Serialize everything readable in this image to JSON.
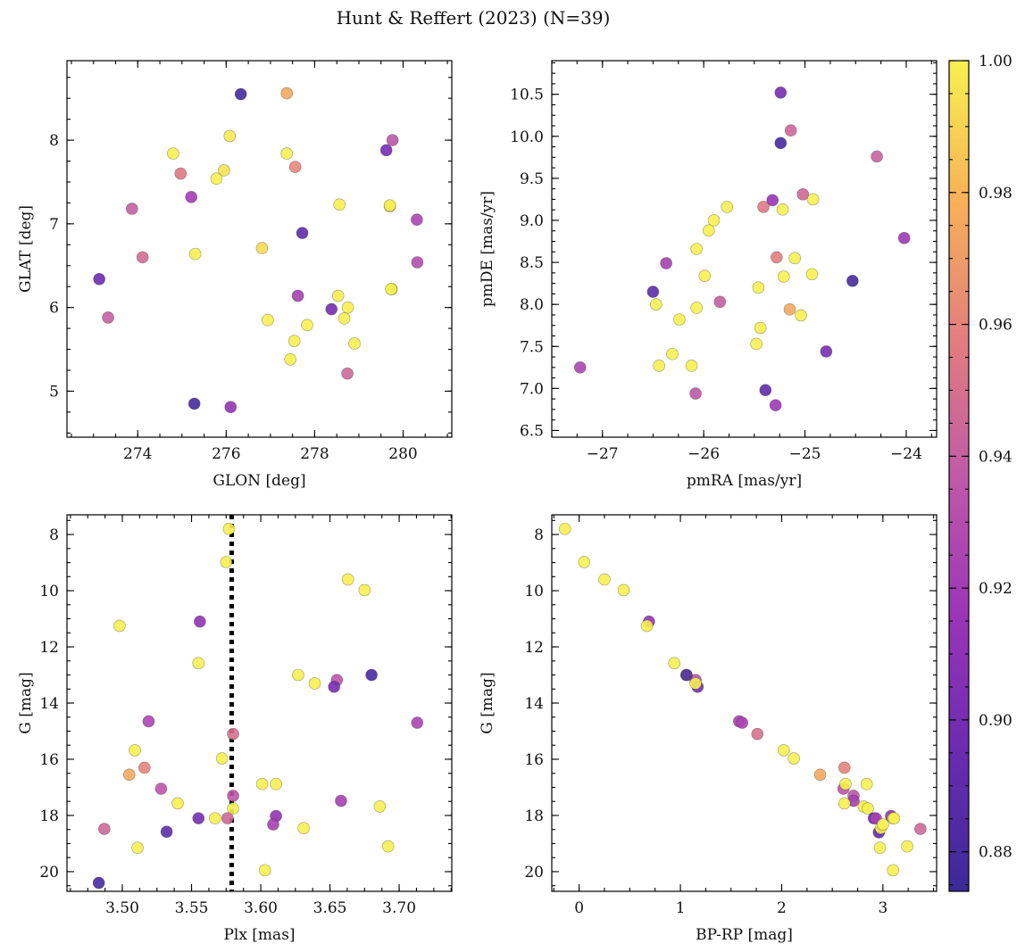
{
  "figure": {
    "title": "Hunt & Reffert (2023) (N=39)"
  },
  "colorbar": {
    "range": [
      0.874,
      1.0
    ],
    "tick_values": [
      0.88,
      0.9,
      0.92,
      0.94,
      0.96,
      0.98,
      1.0
    ],
    "tick_labels": [
      "0.88",
      "0.90",
      "0.92",
      "0.94",
      "0.96",
      "0.98",
      "1.00"
    ]
  },
  "colormap": {
    "name": "plasma",
    "stops": [
      "#3b2a98",
      "#6a2bb0",
      "#9b35b8",
      "#c05aa8",
      "#e37e7e",
      "#f8b257",
      "#f7f050"
    ]
  },
  "chart_data": [
    {
      "type": "scatter",
      "id": "glon-glat",
      "xlabel": "GLON [deg]",
      "ylabel": "GLAT [deg]",
      "xlim": [
        272.4,
        281.1
      ],
      "ylim": [
        4.45,
        8.95
      ],
      "invert_y": false,
      "xticks": [
        274,
        276,
        278,
        280
      ],
      "yticks": [
        5,
        6,
        7,
        8
      ],
      "x": [
        276.33,
        277.37,
        276.08,
        274.8,
        274.97,
        275.95,
        275.78,
        275.21,
        277.37,
        277.56,
        279.62,
        279.76,
        278.56,
        279.7,
        279.7,
        277.72,
        273.87,
        276.81,
        275.3,
        274.11,
        280.31,
        280.32,
        273.13,
        273.33,
        277.62,
        278.53,
        278.75,
        278.38,
        276.94,
        278.67,
        277.83,
        277.54,
        278.9,
        277.45,
        278.74,
        275.28,
        276.1,
        279.74,
        279.73
      ],
      "y": [
        8.55,
        8.56,
        8.05,
        7.84,
        7.6,
        7.64,
        7.54,
        7.32,
        7.84,
        7.68,
        7.88,
        8.0,
        7.23,
        7.21,
        7.22,
        6.89,
        7.18,
        6.71,
        6.64,
        6.6,
        7.05,
        6.54,
        6.34,
        5.88,
        6.14,
        6.14,
        6.0,
        5.98,
        5.85,
        5.87,
        5.79,
        5.6,
        5.57,
        5.38,
        5.21,
        4.85,
        4.81,
        6.22,
        6.22
      ],
      "c": [
        0.878,
        0.975,
        0.998,
        1.0,
        0.955,
        0.995,
        1.0,
        0.92,
        1.0,
        0.962,
        0.9,
        0.935,
        1.0,
        0.99,
        1.0,
        0.89,
        0.94,
        0.993,
        1.0,
        0.948,
        0.925,
        0.93,
        0.895,
        0.94,
        0.922,
        0.998,
        1.0,
        0.9,
        1.0,
        1.0,
        1.0,
        1.0,
        1.0,
        1.0,
        0.945,
        0.88,
        0.912,
        1.0,
        1.0
      ]
    },
    {
      "type": "scatter",
      "id": "pmra-pmde",
      "xlabel": "pmRA [mas/yr]",
      "ylabel": "pmDE [mas/yr]",
      "xlim": [
        -27.5,
        -23.7
      ],
      "ylim": [
        6.42,
        10.9
      ],
      "invert_y": false,
      "xticks": [
        -27,
        -26,
        -25,
        -24
      ],
      "xtick_labels": [
        "−27",
        "−26",
        "−25",
        "−24"
      ],
      "yticks": [
        6.5,
        7.0,
        7.5,
        8.0,
        8.5,
        9.0,
        9.5,
        10.0,
        10.5
      ],
      "ytick_labels": [
        "6.5",
        "7.0",
        "7.5",
        "8.0",
        "8.5",
        "9.0",
        "9.5",
        "10.0",
        "10.5"
      ],
      "x": [
        -25.24,
        -25.14,
        -25.24,
        -24.29,
        -25.02,
        -24.92,
        -25.32,
        -25.41,
        -25.22,
        -25.77,
        -25.9,
        -25.95,
        -24.02,
        -26.07,
        -25.1,
        -25.28,
        -26.37,
        -25.99,
        -24.93,
        -25.46,
        -24.53,
        -26.5,
        -25.04,
        -26.47,
        -25.15,
        -26.07,
        -25.84,
        -26.24,
        -25.44,
        -25.48,
        -26.31,
        -26.44,
        -24.79,
        -26.12,
        -27.22,
        -26.08,
        -25.39,
        -25.29,
        -25.21
      ],
      "y": [
        10.52,
        10.07,
        9.92,
        9.76,
        9.31,
        9.25,
        9.24,
        9.16,
        9.13,
        9.16,
        9.0,
        8.88,
        8.79,
        8.66,
        8.55,
        8.56,
        8.49,
        8.34,
        8.36,
        8.2,
        8.28,
        8.15,
        7.87,
        8.0,
        7.94,
        7.96,
        8.03,
        7.82,
        7.72,
        7.53,
        7.41,
        7.27,
        7.44,
        7.27,
        7.25,
        6.94,
        6.98,
        6.8,
        8.33
      ],
      "c": [
        0.9,
        0.945,
        0.878,
        0.942,
        0.945,
        1.0,
        0.915,
        0.955,
        1.0,
        1.0,
        1.0,
        1.0,
        0.918,
        1.0,
        1.0,
        0.958,
        0.922,
        1.0,
        1.0,
        1.0,
        0.88,
        0.89,
        1.0,
        1.0,
        0.975,
        1.0,
        0.94,
        1.0,
        1.0,
        1.0,
        1.0,
        1.0,
        0.9,
        1.0,
        0.925,
        0.935,
        0.89,
        0.918,
        1.0
      ]
    },
    {
      "type": "scatter",
      "id": "plx-g",
      "xlabel": "Plx [mas]",
      "ylabel": "G [mag]",
      "xlim": [
        3.46,
        3.738
      ],
      "ylim": [
        7.3,
        20.7
      ],
      "invert_y": true,
      "xticks": [
        3.5,
        3.55,
        3.6,
        3.65,
        3.7
      ],
      "xtick_labels": [
        "3.50",
        "3.55",
        "3.60",
        "3.65",
        "3.70"
      ],
      "yticks": [
        8,
        10,
        12,
        14,
        16,
        18,
        20
      ],
      "vline": {
        "x": 3.579,
        "style": "dotted"
      },
      "x": [
        3.577,
        3.575,
        3.663,
        3.675,
        3.498,
        3.556,
        3.555,
        3.627,
        3.639,
        3.655,
        3.653,
        3.68,
        3.519,
        3.713,
        3.58,
        3.509,
        3.572,
        3.516,
        3.505,
        3.528,
        3.601,
        3.611,
        3.54,
        3.686,
        3.58,
        3.658,
        3.567,
        3.576,
        3.611,
        3.555,
        3.609,
        3.487,
        3.532,
        3.631,
        3.511,
        3.692,
        3.603,
        3.483,
        3.58
      ],
      "y": [
        7.8,
        8.98,
        9.6,
        9.98,
        11.25,
        11.1,
        12.58,
        13.0,
        13.3,
        13.18,
        13.42,
        13.0,
        14.65,
        14.7,
        15.1,
        15.68,
        15.97,
        16.3,
        16.55,
        17.05,
        16.88,
        16.88,
        17.57,
        17.68,
        17.3,
        17.48,
        18.1,
        18.1,
        18.02,
        18.1,
        18.32,
        18.48,
        18.58,
        18.45,
        19.15,
        19.1,
        19.95,
        20.4,
        17.75
      ],
      "c": [
        1.0,
        1.0,
        1.0,
        1.0,
        1.0,
        0.912,
        1.0,
        1.0,
        1.0,
        0.935,
        0.9,
        0.88,
        0.925,
        0.925,
        0.95,
        1.0,
        1.0,
        0.96,
        0.975,
        0.935,
        1.0,
        1.0,
        1.0,
        1.0,
        0.935,
        0.922,
        1.0,
        0.945,
        0.912,
        0.9,
        0.922,
        0.945,
        0.89,
        1.0,
        1.0,
        1.0,
        1.0,
        0.88,
        1.0
      ]
    },
    {
      "type": "scatter",
      "id": "bprp-g",
      "xlabel": "BP-RP [mag]",
      "ylabel": "G [mag]",
      "xlim": [
        -0.27,
        3.53
      ],
      "ylim": [
        7.3,
        20.7
      ],
      "invert_y": true,
      "xticks": [
        0,
        1,
        2,
        3
      ],
      "yticks": [
        8,
        10,
        12,
        14,
        16,
        18,
        20
      ],
      "x": [
        -0.14,
        0.05,
        0.25,
        0.44,
        0.69,
        0.67,
        0.94,
        1.06,
        1.15,
        1.17,
        1.15,
        1.06,
        1.58,
        1.61,
        1.76,
        2.02,
        2.12,
        2.62,
        2.61,
        2.63,
        2.71,
        2.71,
        2.38,
        2.84,
        2.62,
        2.81,
        2.85,
        2.91,
        2.93,
        3.08,
        3.1,
        3.11,
        2.96,
        2.98,
        3.0,
        2.97,
        3.24,
        3.37,
        3.1
      ],
      "y": [
        7.8,
        8.98,
        9.6,
        9.98,
        11.1,
        11.25,
        12.58,
        13.0,
        13.18,
        13.42,
        13.3,
        13.0,
        14.65,
        14.7,
        15.1,
        15.68,
        15.97,
        16.3,
        17.05,
        16.88,
        17.3,
        17.48,
        16.55,
        16.88,
        17.57,
        17.68,
        17.75,
        18.1,
        18.1,
        18.02,
        18.1,
        18.1,
        18.6,
        18.45,
        18.32,
        19.15,
        19.1,
        18.48,
        19.95
      ],
      "c": [
        1.0,
        1.0,
        1.0,
        1.0,
        0.912,
        1.0,
        1.0,
        1.0,
        0.935,
        0.9,
        1.0,
        0.88,
        0.925,
        0.925,
        0.95,
        1.0,
        1.0,
        0.96,
        0.935,
        1.0,
        0.935,
        0.922,
        0.975,
        1.0,
        1.0,
        1.0,
        1.0,
        0.9,
        0.922,
        0.912,
        1.0,
        1.0,
        0.89,
        1.0,
        1.0,
        1.0,
        1.0,
        0.945,
        1.0
      ]
    }
  ]
}
